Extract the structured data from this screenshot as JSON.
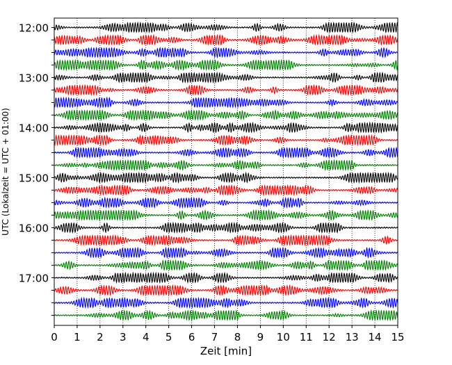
{
  "chart_data": {
    "type": "line",
    "chart_kind": "seismogram / helicorder (dayplot)",
    "xlabel": "Zeit  [min]",
    "ylabel": "UTC (Lokalzeit = UTC + 01:00)",
    "xlim": [
      0,
      15
    ],
    "x_ticks": [
      "0",
      "1",
      "2",
      "3",
      "4",
      "5",
      "6",
      "7",
      "8",
      "9",
      "10",
      "11",
      "12",
      "13",
      "14",
      "15"
    ],
    "x_grid": "dotted vertical lines at each minute",
    "trace_interval_min": 15,
    "trace_colors": [
      "#000000",
      "#ff0000",
      "#0000ff",
      "#008000"
    ],
    "traces": [
      {
        "start": "12:00",
        "color": "#000000"
      },
      {
        "start": "12:15",
        "color": "#ff0000"
      },
      {
        "start": "12:30",
        "color": "#0000ff"
      },
      {
        "start": "12:45",
        "color": "#008000"
      },
      {
        "start": "13:00",
        "color": "#000000"
      },
      {
        "start": "13:15",
        "color": "#ff0000"
      },
      {
        "start": "13:30",
        "color": "#0000ff"
      },
      {
        "start": "13:45",
        "color": "#008000"
      },
      {
        "start": "14:00",
        "color": "#000000"
      },
      {
        "start": "14:15",
        "color": "#ff0000"
      },
      {
        "start": "14:30",
        "color": "#0000ff"
      },
      {
        "start": "14:45",
        "color": "#008000"
      },
      {
        "start": "15:00",
        "color": "#000000"
      },
      {
        "start": "15:15",
        "color": "#ff0000"
      },
      {
        "start": "15:30",
        "color": "#0000ff"
      },
      {
        "start": "15:45",
        "color": "#008000"
      },
      {
        "start": "16:00",
        "color": "#000000"
      },
      {
        "start": "16:15",
        "color": "#ff0000"
      },
      {
        "start": "16:30",
        "color": "#0000ff"
      },
      {
        "start": "16:45",
        "color": "#008000"
      },
      {
        "start": "17:00",
        "color": "#000000"
      },
      {
        "start": "17:15",
        "color": "#ff0000"
      },
      {
        "start": "17:30",
        "color": "#0000ff"
      },
      {
        "start": "17:45",
        "color": "#008000"
      }
    ],
    "y_tick_labels": [
      "12:00",
      "13:00",
      "14:00",
      "15:00",
      "16:00",
      "17:00"
    ],
    "legend": "none"
  }
}
